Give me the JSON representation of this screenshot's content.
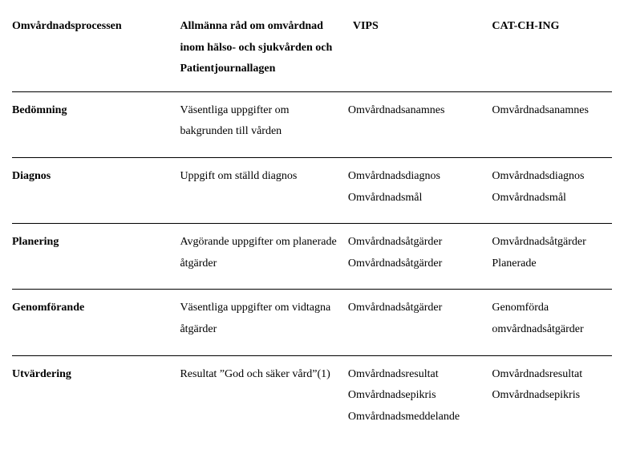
{
  "table": {
    "columns": [
      "Omvårdnadsprocessen",
      "Allmänna råd om omvårdnad inom hälso- och sjukvården och Patientjournallagen",
      "VIPS",
      "CAT-CH-ING"
    ],
    "rows": [
      {
        "label": "Bedömning",
        "col1": "Väsentliga uppgifter om bakgrunden till vården",
        "col2": "Omvårdnadsanamnes",
        "col3": "Omvårdnadsanamnes"
      },
      {
        "label": "Diagnos",
        "col1": "Uppgift om ställd diagnos",
        "col2": "Omvårdnadsdiagnos\nOmvårdnadsmål",
        "col3": "Omvårdnadsdiagnos\nOmvårdnadsmål"
      },
      {
        "label": "Planering",
        "col1": "Avgörande uppgifter om planerade åtgärder",
        "col2": "Omvårdnadsåtgärder\nOmvårdnadsåtgärder",
        "col3": "Omvårdnadsåtgärder\nPlanerade"
      },
      {
        "label": "Genomförande",
        "col1": "Väsentliga uppgifter om vidtagna åtgärder",
        "col2": "Omvårdnadsåtgärder",
        "col3": "Genomförda omvårdnadsåtgärder"
      },
      {
        "label": "Utvärdering",
        "col1": "Resultat ”God och säker vård”(1)",
        "col2": "Omvårdnadsresultat\nOmvårdnadsepikris\nOmvårdnadsmeddelande",
        "col3": "Omvårdnadsresultat\nOmvårdnadsepikris"
      }
    ]
  }
}
